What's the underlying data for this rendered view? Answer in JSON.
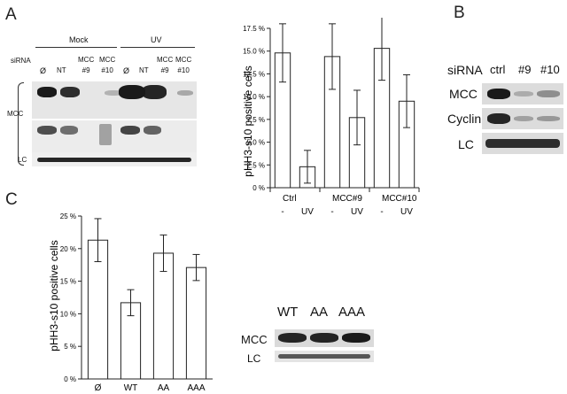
{
  "panels": {
    "a": "A",
    "b": "B",
    "c": "C"
  },
  "panel_a_blot": {
    "groups": [
      "Mock",
      "UV"
    ],
    "sirna_label": "siRNA",
    "lanes": [
      "Ø",
      "NT",
      "MCC\n#9",
      "MCC\n#10",
      "Ø",
      "NT",
      "MCC\n#9",
      "MCC\n#10"
    ],
    "rows": [
      "MCC",
      "LC"
    ]
  },
  "panel_b_blot": {
    "sirna_label": "siRNA",
    "lanes": [
      "ctrl",
      "#9",
      "#10"
    ],
    "rows": [
      "MCC",
      "Cyclin B1",
      "LC"
    ]
  },
  "panel_c_blot": {
    "lanes": [
      "WT",
      "AA",
      "AAA"
    ],
    "rows": [
      "MCC",
      "LC"
    ]
  },
  "chart_data": [
    {
      "type": "bar",
      "ylabel": "pHH3-s10 positive cells",
      "ylim": [
        0,
        0.175
      ],
      "yticks": [
        0,
        0.025,
        0.05,
        0.075,
        0.1,
        0.125,
        0.15,
        0.175
      ],
      "ytick_labels": [
        "0 %",
        "2.5 %",
        "5.0 %",
        "7.5 %",
        "10.0 %",
        "12.5 %",
        "15.0 %",
        "17.5 %"
      ],
      "categories": [
        "-",
        "UV",
        "-",
        "UV",
        "-",
        "UV"
      ],
      "groups": [
        "Ctrl",
        "MCC#9",
        "MCC#10"
      ],
      "values": [
        0.148,
        0.023,
        0.144,
        0.077,
        0.153,
        0.095
      ],
      "errors": [
        0.032,
        0.018,
        0.036,
        0.03,
        0.035,
        0.029
      ],
      "fill": "#ffffff",
      "grid": false
    },
    {
      "type": "bar",
      "ylabel": "pHH3-s10 positive cells",
      "ylim": [
        0,
        0.25
      ],
      "yticks": [
        0,
        0.05,
        0.1,
        0.15,
        0.2,
        0.25
      ],
      "ytick_labels": [
        "0 %",
        "5 %",
        "10 %",
        "15 %",
        "20 %",
        "25 %"
      ],
      "categories": [
        "Ø",
        "WT",
        "AA",
        "AAA"
      ],
      "values": [
        0.213,
        0.117,
        0.193,
        0.171
      ],
      "errors": [
        0.033,
        0.02,
        0.028,
        0.02
      ],
      "fill": "#ffffff",
      "grid": false
    }
  ]
}
